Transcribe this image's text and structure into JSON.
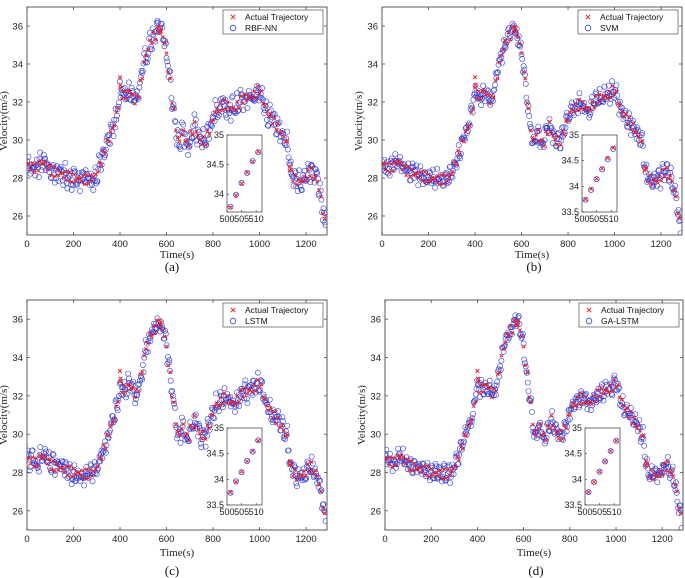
{
  "chart_data": [
    {
      "type": "scatter",
      "panel_label": "(a)",
      "xlabel": "Time(s)",
      "ylabel": "Velocity(m/s)",
      "xlim": [
        0,
        1290
      ],
      "ylim": [
        25,
        37
      ],
      "x_ticks": [
        "0",
        "200",
        "400",
        "600",
        "800",
        "1000",
        "1200"
      ],
      "y_ticks": [
        "26",
        "28",
        "30",
        "32",
        "34",
        "36"
      ],
      "legend": [
        "Actual Trajectory",
        "RBF-NN"
      ],
      "series": [
        {
          "name": "Actual Trajectory",
          "marker": "x",
          "color": "#e8222a"
        },
        {
          "name": "RBF-NN",
          "marker": "o",
          "color": "#2e3bd6",
          "spread": 0.45
        }
      ],
      "inset": {
        "x_ticks": [
          "500",
          "505",
          "510"
        ],
        "y_ticks": [
          "34",
          "34.5",
          "35"
        ],
        "xlim": [
          500,
          512
        ],
        "ylim": [
          33.7,
          35
        ],
        "actual": [
          33.78,
          33.98,
          34.18,
          34.37,
          34.55,
          34.72
        ],
        "pred": [
          33.79,
          33.99,
          34.19,
          34.36,
          34.56,
          34.71
        ]
      },
      "trajectory_keypoints": [
        [
          0,
          28.7
        ],
        [
          40,
          28.5
        ],
        [
          70,
          28.9
        ],
        [
          100,
          28.4
        ],
        [
          150,
          28.2
        ],
        [
          200,
          28.0
        ],
        [
          250,
          27.9
        ],
        [
          290,
          28.0
        ],
        [
          320,
          28.9
        ],
        [
          350,
          30.0
        ],
        [
          380,
          31.0
        ],
        [
          400,
          32.5
        ],
        [
          420,
          32.3
        ],
        [
          440,
          32.6
        ],
        [
          470,
          32.0
        ],
        [
          490,
          33.0
        ],
        [
          510,
          34.4
        ],
        [
          530,
          35.2
        ],
        [
          550,
          35.5
        ],
        [
          570,
          35.9
        ],
        [
          590,
          35.3
        ],
        [
          610,
          33.6
        ],
        [
          630,
          31.6
        ],
        [
          650,
          29.8
        ],
        [
          670,
          30.5
        ],
        [
          690,
          29.7
        ],
        [
          720,
          30.8
        ],
        [
          745,
          29.9
        ],
        [
          770,
          30.0
        ],
        [
          810,
          31.5
        ],
        [
          850,
          31.9
        ],
        [
          890,
          31.6
        ],
        [
          930,
          32.2
        ],
        [
          970,
          32.3
        ],
        [
          1000,
          32.7
        ],
        [
          1030,
          31.5
        ],
        [
          1060,
          31.0
        ],
        [
          1090,
          30.5
        ],
        [
          1120,
          29.8
        ],
        [
          1130,
          28.3
        ],
        [
          1160,
          27.8
        ],
        [
          1190,
          27.9
        ],
        [
          1220,
          28.4
        ],
        [
          1250,
          27.8
        ],
        [
          1270,
          26.5
        ],
        [
          1285,
          25.2
        ]
      ]
    },
    {
      "type": "scatter",
      "panel_label": "(b)",
      "xlabel": "Time(s)",
      "ylabel": "Velocity(m/s)",
      "xlim": [
        0,
        1290
      ],
      "ylim": [
        25,
        37
      ],
      "x_ticks": [
        "0",
        "200",
        "400",
        "600",
        "800",
        "1000",
        "1200"
      ],
      "y_ticks": [
        "26",
        "28",
        "30",
        "32",
        "34",
        "36"
      ],
      "legend": [
        "Actual Trajectory",
        "SVM"
      ],
      "series": [
        {
          "name": "Actual Trajectory",
          "marker": "x",
          "color": "#e8222a"
        },
        {
          "name": "SVM",
          "marker": "o",
          "color": "#2e3bd6",
          "spread": 0.35
        }
      ],
      "inset": {
        "x_ticks": [
          "500",
          "505",
          "510"
        ],
        "y_ticks": [
          "33.5",
          "34",
          "34.5",
          "35"
        ],
        "xlim": [
          500,
          512
        ],
        "ylim": [
          33.5,
          35
        ],
        "actual": [
          33.75,
          33.95,
          34.15,
          34.35,
          34.55,
          34.75
        ],
        "pred": [
          33.74,
          33.93,
          34.14,
          34.33,
          34.53,
          34.73
        ]
      },
      "trajectory_keypoints": [
        [
          0,
          28.7
        ],
        [
          40,
          28.5
        ],
        [
          70,
          28.9
        ],
        [
          100,
          28.4
        ],
        [
          150,
          28.2
        ],
        [
          200,
          28.0
        ],
        [
          250,
          27.9
        ],
        [
          290,
          28.0
        ],
        [
          320,
          28.9
        ],
        [
          350,
          30.0
        ],
        [
          380,
          31.0
        ],
        [
          400,
          32.5
        ],
        [
          420,
          32.3
        ],
        [
          440,
          32.6
        ],
        [
          470,
          32.0
        ],
        [
          490,
          33.0
        ],
        [
          510,
          34.4
        ],
        [
          530,
          35.2
        ],
        [
          550,
          35.5
        ],
        [
          570,
          35.9
        ],
        [
          590,
          35.3
        ],
        [
          610,
          33.6
        ],
        [
          630,
          31.6
        ],
        [
          650,
          29.8
        ],
        [
          670,
          30.5
        ],
        [
          690,
          29.7
        ],
        [
          720,
          30.8
        ],
        [
          745,
          29.9
        ],
        [
          770,
          30.0
        ],
        [
          810,
          31.5
        ],
        [
          850,
          31.9
        ],
        [
          890,
          31.6
        ],
        [
          930,
          32.2
        ],
        [
          970,
          32.3
        ],
        [
          1000,
          32.7
        ],
        [
          1030,
          31.5
        ],
        [
          1060,
          31.0
        ],
        [
          1090,
          30.5
        ],
        [
          1120,
          29.8
        ],
        [
          1130,
          28.3
        ],
        [
          1160,
          27.8
        ],
        [
          1190,
          27.9
        ],
        [
          1220,
          28.4
        ],
        [
          1250,
          27.8
        ],
        [
          1270,
          26.5
        ],
        [
          1285,
          25.2
        ]
      ]
    },
    {
      "type": "scatter",
      "panel_label": "(c)",
      "xlabel": "Time(s)",
      "ylabel": "Velocity(m/s)",
      "xlim": [
        0,
        1290
      ],
      "ylim": [
        25,
        37
      ],
      "x_ticks": [
        "0",
        "200",
        "400",
        "600",
        "800",
        "1000",
        "1200"
      ],
      "y_ticks": [
        "26",
        "28",
        "30",
        "32",
        "34",
        "36"
      ],
      "legend": [
        "Actual Trajectory",
        "LSTM"
      ],
      "series": [
        {
          "name": "Actual Trajectory",
          "marker": "x",
          "color": "#e8222a"
        },
        {
          "name": "LSTM",
          "marker": "o",
          "color": "#2e3bd6",
          "spread": 0.4
        }
      ],
      "inset": {
        "x_ticks": [
          "500",
          "505",
          "510"
        ],
        "y_ticks": [
          "33.5",
          "34",
          "34.5",
          "35"
        ],
        "xlim": [
          500,
          512
        ],
        "ylim": [
          33.5,
          35
        ],
        "actual": [
          33.75,
          33.95,
          34.15,
          34.35,
          34.55,
          34.75
        ],
        "pred": [
          33.74,
          33.96,
          34.14,
          34.36,
          34.54,
          34.76
        ]
      },
      "trajectory_keypoints": [
        [
          0,
          28.7
        ],
        [
          40,
          28.5
        ],
        [
          70,
          28.9
        ],
        [
          100,
          28.4
        ],
        [
          150,
          28.2
        ],
        [
          200,
          28.0
        ],
        [
          250,
          27.9
        ],
        [
          290,
          28.0
        ],
        [
          320,
          28.9
        ],
        [
          350,
          30.0
        ],
        [
          380,
          31.0
        ],
        [
          400,
          32.5
        ],
        [
          420,
          32.3
        ],
        [
          440,
          32.6
        ],
        [
          470,
          32.0
        ],
        [
          490,
          33.0
        ],
        [
          510,
          34.4
        ],
        [
          530,
          35.2
        ],
        [
          550,
          35.5
        ],
        [
          570,
          35.9
        ],
        [
          590,
          35.3
        ],
        [
          610,
          33.6
        ],
        [
          630,
          31.6
        ],
        [
          650,
          29.8
        ],
        [
          670,
          30.5
        ],
        [
          690,
          29.7
        ],
        [
          720,
          30.8
        ],
        [
          745,
          29.9
        ],
        [
          770,
          30.0
        ],
        [
          810,
          31.5
        ],
        [
          850,
          31.9
        ],
        [
          890,
          31.6
        ],
        [
          930,
          32.2
        ],
        [
          970,
          32.3
        ],
        [
          1000,
          32.7
        ],
        [
          1030,
          31.5
        ],
        [
          1060,
          31.0
        ],
        [
          1090,
          30.5
        ],
        [
          1120,
          29.8
        ],
        [
          1130,
          28.3
        ],
        [
          1160,
          27.8
        ],
        [
          1190,
          27.9
        ],
        [
          1220,
          28.4
        ],
        [
          1250,
          27.8
        ],
        [
          1270,
          26.5
        ],
        [
          1285,
          25.2
        ]
      ]
    },
    {
      "type": "scatter",
      "panel_label": "(d)",
      "xlabel": "Time(s)",
      "ylabel": "Velocity(m/s)",
      "xlim": [
        0,
        1290
      ],
      "ylim": [
        25,
        37
      ],
      "x_ticks": [
        "0",
        "200",
        "400",
        "600",
        "800",
        "1000",
        "1200"
      ],
      "y_ticks": [
        "26",
        "28",
        "30",
        "32",
        "34",
        "36"
      ],
      "legend": [
        "Actual Trajectory",
        "GA-LSTM"
      ],
      "series": [
        {
          "name": "Actual Trajectory",
          "marker": "x",
          "color": "#e8222a"
        },
        {
          "name": "GA-LSTM",
          "marker": "o",
          "color": "#2e3bd6",
          "spread": 0.3
        }
      ],
      "inset": {
        "x_ticks": [
          "500",
          "505",
          "510"
        ],
        "y_ticks": [
          "33.5",
          "34",
          "34.5",
          "35"
        ],
        "xlim": [
          500,
          512
        ],
        "ylim": [
          33.5,
          35
        ],
        "actual": [
          33.75,
          33.95,
          34.15,
          34.35,
          34.55,
          34.75
        ],
        "pred": [
          33.75,
          33.95,
          34.15,
          34.35,
          34.55,
          34.75
        ]
      },
      "trajectory_keypoints": [
        [
          0,
          28.7
        ],
        [
          40,
          28.5
        ],
        [
          70,
          28.9
        ],
        [
          100,
          28.4
        ],
        [
          150,
          28.2
        ],
        [
          200,
          28.0
        ],
        [
          250,
          27.9
        ],
        [
          290,
          28.0
        ],
        [
          320,
          28.9
        ],
        [
          350,
          30.0
        ],
        [
          380,
          31.0
        ],
        [
          400,
          32.5
        ],
        [
          420,
          32.3
        ],
        [
          440,
          32.6
        ],
        [
          470,
          32.0
        ],
        [
          490,
          33.0
        ],
        [
          510,
          34.4
        ],
        [
          530,
          35.2
        ],
        [
          550,
          35.5
        ],
        [
          570,
          35.9
        ],
        [
          590,
          35.3
        ],
        [
          610,
          33.6
        ],
        [
          630,
          31.6
        ],
        [
          650,
          29.8
        ],
        [
          670,
          30.5
        ],
        [
          690,
          29.7
        ],
        [
          720,
          30.8
        ],
        [
          745,
          29.9
        ],
        [
          770,
          30.0
        ],
        [
          810,
          31.5
        ],
        [
          850,
          31.9
        ],
        [
          890,
          31.6
        ],
        [
          930,
          32.2
        ],
        [
          970,
          32.3
        ],
        [
          1000,
          32.7
        ],
        [
          1030,
          31.5
        ],
        [
          1060,
          31.0
        ],
        [
          1090,
          30.5
        ],
        [
          1120,
          29.8
        ],
        [
          1130,
          28.3
        ],
        [
          1160,
          27.8
        ],
        [
          1190,
          27.9
        ],
        [
          1220,
          28.4
        ],
        [
          1250,
          27.8
        ],
        [
          1270,
          26.5
        ],
        [
          1285,
          25.2
        ]
      ]
    }
  ]
}
